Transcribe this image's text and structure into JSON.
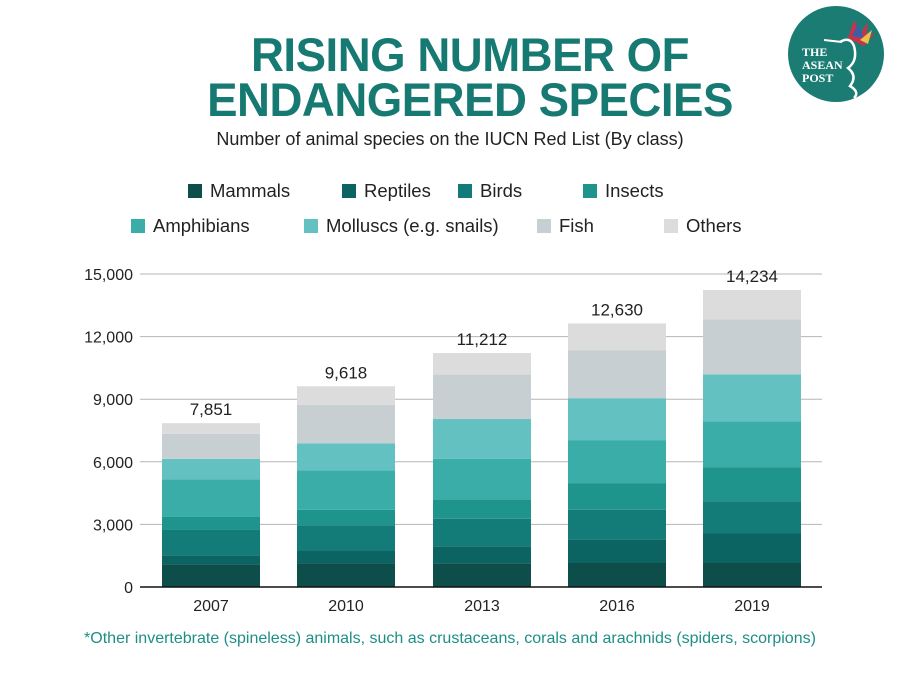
{
  "title_lines": [
    "RISING NUMBER OF",
    "ENDANGERED SPECIES"
  ],
  "subtitle": "Number of animal species on the IUCN Red List (By class)",
  "logo": {
    "text": "THE ASEAN POST",
    "color": "#1b7c74"
  },
  "footnote": "*Other invertebrate (spineless) animals, such as crustaceans, corals and arachnids (spiders, scorpions)",
  "chart_data": {
    "type": "stacked-bar",
    "categories": [
      "2007",
      "2010",
      "2013",
      "2016",
      "2019"
    ],
    "totals": [
      "7,851",
      "9,618",
      "11,212",
      "12,630",
      "14,234"
    ],
    "ylim": [
      0,
      15000
    ],
    "yticks": [
      "0",
      "3,000",
      "6,000",
      "9,000",
      "12,000",
      "15,000"
    ],
    "grid": true,
    "legend_placement": "top",
    "series": [
      {
        "name": "Mammals",
        "color": "#0d4d4a",
        "values": [
          1094,
          1131,
          1140,
          1150,
          1150
        ]
      },
      {
        "name": "Reptiles",
        "color": "#0b6461",
        "values": [
          422,
          594,
          810,
          1120,
          1435
        ]
      },
      {
        "name": "Birds",
        "color": "#137c78",
        "values": [
          1217,
          1240,
          1320,
          1430,
          1530
        ]
      },
      {
        "name": "Insects",
        "color": "#1f948d",
        "values": [
          623,
          733,
          930,
          1280,
          1630
        ]
      },
      {
        "name": "Amphibians",
        "color": "#3aada9",
        "values": [
          1808,
          1898,
          1950,
          2060,
          2200
        ]
      },
      {
        "name": "Molluscs (e.g. snails)",
        "color": "#64c1c2",
        "values": [
          978,
          1288,
          1900,
          2010,
          2250
        ]
      },
      {
        "name": "Fish",
        "color": "#c7cfd2",
        "values": [
          1201,
          1851,
          2130,
          2300,
          2630
        ]
      },
      {
        "name": "Others",
        "color": "#dcdcdc",
        "values": [
          508,
          883,
          1032,
          1280,
          1409
        ]
      }
    ]
  }
}
